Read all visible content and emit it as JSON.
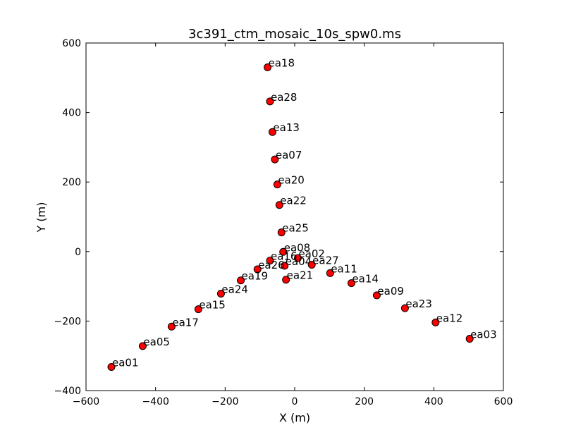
{
  "chart_data": {
    "type": "scatter",
    "title": "3c391_ctm_mosaic_10s_spw0.ms",
    "xlabel": "X (m)",
    "ylabel": "Y (m)",
    "xlim": [
      -600,
      600
    ],
    "ylim": [
      -400,
      600
    ],
    "xticks": [
      -600,
      -400,
      -200,
      0,
      200,
      400,
      600
    ],
    "yticks": [
      -400,
      -200,
      0,
      200,
      400,
      600
    ],
    "xtick_labels": [
      "−600",
      "−400",
      "−200",
      "0",
      "200",
      "400",
      "600"
    ],
    "ytick_labels": [
      "−400",
      "−200",
      "0",
      "200",
      "400",
      "600"
    ],
    "grid": false,
    "marker_color": "#ff0000",
    "marker_edge": "#000000",
    "points": [
      {
        "label": "ea18",
        "x": -78,
        "y": 530
      },
      {
        "label": "ea28",
        "x": -71,
        "y": 432
      },
      {
        "label": "ea13",
        "x": -64,
        "y": 344
      },
      {
        "label": "ea07",
        "x": -57,
        "y": 265
      },
      {
        "label": "ea20",
        "x": -50,
        "y": 193
      },
      {
        "label": "ea22",
        "x": -44,
        "y": 134
      },
      {
        "label": "ea25",
        "x": -38,
        "y": 55
      },
      {
        "label": "ea08",
        "x": -33,
        "y": -1
      },
      {
        "label": "ea02",
        "x": 9,
        "y": -19
      },
      {
        "label": "ea16",
        "x": -71,
        "y": -26
      },
      {
        "label": "ea04",
        "x": -29,
        "y": -41
      },
      {
        "label": "ea27",
        "x": 49,
        "y": -38
      },
      {
        "label": "ea26",
        "x": -107,
        "y": -51
      },
      {
        "label": "ea11",
        "x": 102,
        "y": -62
      },
      {
        "label": "ea21",
        "x": -25,
        "y": -81
      },
      {
        "label": "ea19",
        "x": -155,
        "y": -83
      },
      {
        "label": "ea14",
        "x": 163,
        "y": -91
      },
      {
        "label": "ea24",
        "x": -212,
        "y": -121
      },
      {
        "label": "ea09",
        "x": 236,
        "y": -126
      },
      {
        "label": "ea15",
        "x": -277,
        "y": -166
      },
      {
        "label": "ea23",
        "x": 317,
        "y": -163
      },
      {
        "label": "ea17",
        "x": -354,
        "y": -216
      },
      {
        "label": "ea12",
        "x": 405,
        "y": -204
      },
      {
        "label": "ea05",
        "x": -437,
        "y": -272
      },
      {
        "label": "ea03",
        "x": 503,
        "y": -251
      },
      {
        "label": "ea01",
        "x": -527,
        "y": -332
      }
    ]
  }
}
